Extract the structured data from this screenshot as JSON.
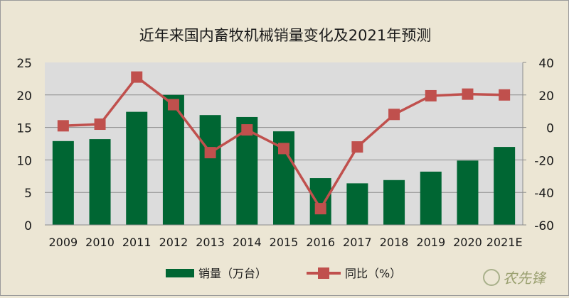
{
  "chart_data": {
    "type": "bar+line",
    "title": "近年来国内畜牧机械销量变化及2021年预测",
    "categories": [
      "2009",
      "2010",
      "2011",
      "2012",
      "2013",
      "2014",
      "2015",
      "2016",
      "2017",
      "2018",
      "2019",
      "2020",
      "2021E"
    ],
    "series": [
      {
        "name": "销量（万台）",
        "type": "bar",
        "axis": "left",
        "color": "#006633",
        "values": [
          12.9,
          13.2,
          17.4,
          20.0,
          16.9,
          16.6,
          14.4,
          7.2,
          6.4,
          6.9,
          8.2,
          9.9,
          12.0
        ]
      },
      {
        "name": "同比（%）",
        "type": "line",
        "axis": "right",
        "color": "#c0504d",
        "values": [
          1,
          2,
          31,
          14,
          -15.5,
          -1.5,
          -13,
          -50,
          -12,
          8,
          19.5,
          20.5,
          20
        ]
      }
    ],
    "left_axis": {
      "ylim": [
        0,
        25
      ],
      "ticks": [
        "0",
        "5",
        "10",
        "15",
        "20",
        "25"
      ]
    },
    "right_axis": {
      "ylim": [
        -60,
        40
      ],
      "ticks": [
        "-60",
        "-40",
        "-20",
        "0",
        "20",
        "40"
      ]
    },
    "grid": true,
    "legend": "bottom"
  },
  "watermark": "农先锋"
}
